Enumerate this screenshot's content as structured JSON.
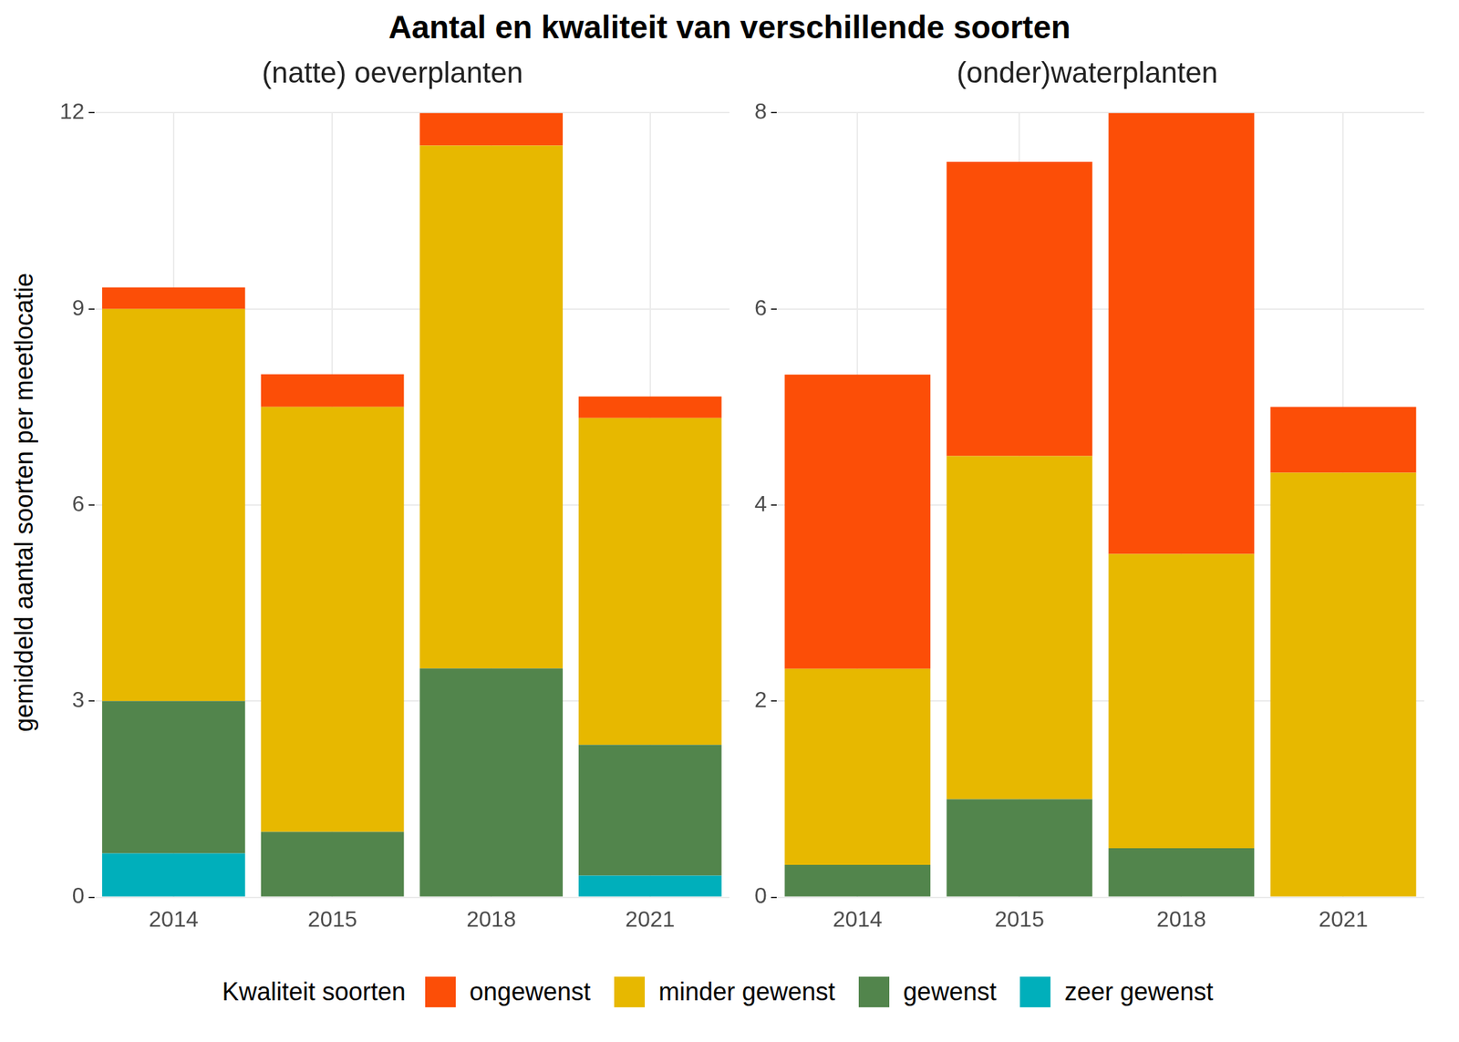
{
  "title": "Aantal en kwaliteit van verschillende soorten",
  "y_label": "gemiddeld aantal soorten per meetlocatie",
  "legend_title": "Kwaliteit soorten",
  "chart_data": [
    {
      "type": "bar",
      "subtitle": "(natte) oeverplanten",
      "categories": [
        "2014",
        "2015",
        "2018",
        "2021"
      ],
      "series": [
        {
          "name": "ongewenst",
          "color": "#FC4E07",
          "values": [
            0.33,
            0.5,
            0.5,
            0.33
          ]
        },
        {
          "name": "minder gewenst",
          "color": "#E7B800",
          "values": [
            6.0,
            6.5,
            8.0,
            5.0
          ]
        },
        {
          "name": "gewenst",
          "color": "#52854C",
          "values": [
            2.33,
            1.0,
            3.5,
            2.0
          ]
        },
        {
          "name": "zeer gewenst",
          "color": "#00AFBB",
          "values": [
            0.67,
            0,
            0,
            0.33
          ]
        }
      ],
      "ylim": [
        0,
        12
      ],
      "yticks": [
        0,
        3,
        6,
        9,
        12
      ],
      "stacked": true,
      "grid": true,
      "legend": "bottom"
    },
    {
      "type": "bar",
      "subtitle": "(onder)waterplanten",
      "categories": [
        "2014",
        "2015",
        "2018",
        "2021"
      ],
      "series": [
        {
          "name": "ongewenst",
          "color": "#FC4E07",
          "values": [
            3.0,
            3.0,
            4.5,
            0.67
          ]
        },
        {
          "name": "minder gewenst",
          "color": "#E7B800",
          "values": [
            2.0,
            3.5,
            3.0,
            4.33
          ]
        },
        {
          "name": "gewenst",
          "color": "#52854C",
          "values": [
            0.33,
            1.0,
            0.5,
            0
          ]
        },
        {
          "name": "zeer gewenst",
          "color": "#00AFBB",
          "values": [
            0,
            0,
            0,
            0
          ]
        }
      ],
      "ylim": [
        0,
        8
      ],
      "yticks": [
        0,
        2,
        4,
        6,
        8
      ],
      "stacked": true,
      "grid": true,
      "legend": "bottom"
    }
  ]
}
